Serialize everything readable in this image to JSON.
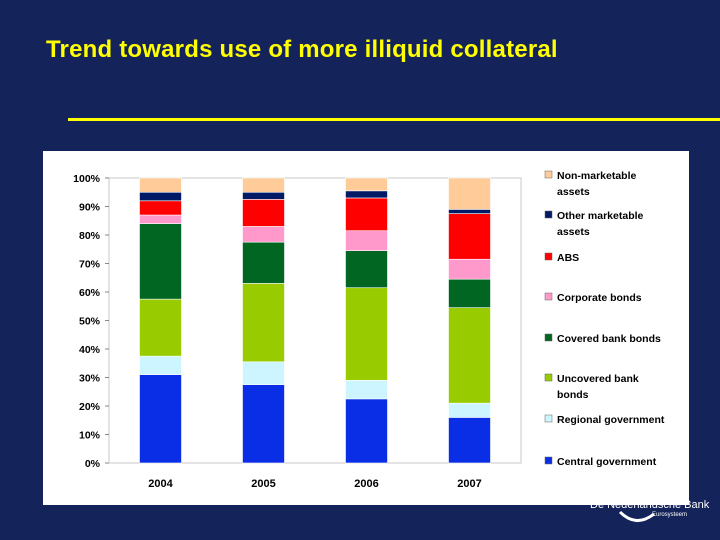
{
  "slide": {
    "title": "Trend towards use of more illiquid collateral"
  },
  "logo": {
    "name": "De Nederlandsche Bank",
    "tagline": "Eurosysteem"
  },
  "colors": {
    "background": "#14235a",
    "title": "#ffff00",
    "panel": "#ffffff"
  },
  "chart_data": {
    "type": "bar",
    "stacked": true,
    "normalized": true,
    "title": "",
    "xlabel": "",
    "ylabel": "",
    "categories": [
      "2004",
      "2005",
      "2006",
      "2007"
    ],
    "y_ticks": [
      "0%",
      "10%",
      "20%",
      "30%",
      "40%",
      "50%",
      "60%",
      "70%",
      "80%",
      "90%",
      "100%"
    ],
    "ylim": [
      0,
      100
    ],
    "grid": false,
    "legend_position": "right",
    "series": [
      {
        "name": "Central government",
        "color": "#0a2ee6",
        "values": [
          31,
          27.5,
          22.5,
          16
        ]
      },
      {
        "name": "Regional government",
        "color": "#ccf5ff",
        "values": [
          6.5,
          8,
          6.5,
          5
        ]
      },
      {
        "name": "Uncovered bank bonds",
        "color": "#99cc00",
        "values": [
          20,
          27.5,
          32.5,
          33.5
        ]
      },
      {
        "name": "Covered bank bonds",
        "color": "#006622",
        "values": [
          26.5,
          14.5,
          13,
          10
        ]
      },
      {
        "name": "Corporate bonds",
        "color": "#ff99cc",
        "values": [
          3,
          5.5,
          7,
          7
        ]
      },
      {
        "name": "ABS",
        "color": "#ff0000",
        "values": [
          5,
          9.5,
          11.5,
          16
        ]
      },
      {
        "name": "Other marketable assets",
        "color": "#001a66",
        "values": [
          3,
          2.5,
          2.5,
          1.5
        ]
      },
      {
        "name": "Non-marketable assets",
        "color": "#ffcc99",
        "values": [
          5,
          5,
          4.5,
          11
        ]
      }
    ],
    "legend_entries": [
      {
        "lines": [
          "Non-marketable",
          "assets"
        ],
        "color": "#ffcc99"
      },
      {
        "lines": [
          "Other marketable",
          "assets"
        ],
        "color": "#001a66"
      },
      {
        "lines": [
          "ABS"
        ],
        "color": "#ff0000"
      },
      {
        "lines": [
          "Corporate bonds"
        ],
        "color": "#ff99cc"
      },
      {
        "lines": [
          "Covered bank bonds"
        ],
        "color": "#006622"
      },
      {
        "lines": [
          "Uncovered bank",
          "bonds"
        ],
        "color": "#99cc00"
      },
      {
        "lines": [
          "Regional government"
        ],
        "color": "#ccf5ff"
      },
      {
        "lines": [
          "Central government"
        ],
        "color": "#0a2ee6"
      }
    ]
  }
}
